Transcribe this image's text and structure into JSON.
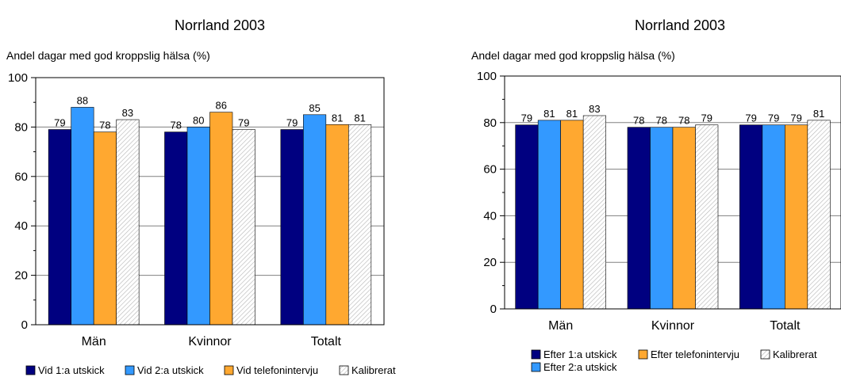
{
  "colors": {
    "navy": "#000080",
    "blue": "#3399ff",
    "orange": "#ffa830",
    "calibrated": "#ffffff",
    "hatch": "#b4b4b4"
  },
  "chart_data": [
    {
      "type": "bar",
      "title": "Norrland 2003",
      "ylabel": "Andel dagar med god kroppslig hälsa (%)",
      "ylim": [
        0,
        100
      ],
      "yticks": [
        0,
        20,
        40,
        60,
        80,
        100
      ],
      "grid": true,
      "legend_position": "bottom",
      "categories": [
        "Män",
        "Kvinnor",
        "Totalt"
      ],
      "series": [
        {
          "name": "Vid 1:a utskick",
          "color": "navy",
          "values": [
            79,
            78,
            79
          ]
        },
        {
          "name": "Vid 2:a utskick",
          "color": "blue",
          "values": [
            88,
            80,
            85
          ]
        },
        {
          "name": "Vid telefonintervju",
          "color": "orange",
          "values": [
            78,
            86,
            81
          ]
        },
        {
          "name": "Kalibrerat",
          "color": "calibrated",
          "values": [
            83,
            79,
            81
          ]
        }
      ]
    },
    {
      "type": "bar",
      "title": "Norrland 2003",
      "ylabel": "Andel dagar med god kroppslig hälsa (%)",
      "ylim": [
        0,
        100
      ],
      "yticks": [
        0,
        20,
        40,
        60,
        80,
        100
      ],
      "grid": true,
      "legend_position": "bottom",
      "categories": [
        "Män",
        "Kvinnor",
        "Totalt"
      ],
      "series": [
        {
          "name": "Efter 1:a utskick",
          "color": "navy",
          "values": [
            79,
            78,
            79
          ]
        },
        {
          "name": "Efter 2:a utskick",
          "color": "blue",
          "values": [
            81,
            78,
            79
          ]
        },
        {
          "name": "Efter telefonintervju",
          "color": "orange",
          "values": [
            81,
            78,
            79
          ]
        },
        {
          "name": "Kalibrerat",
          "color": "calibrated",
          "values": [
            83,
            79,
            81
          ]
        }
      ]
    }
  ]
}
